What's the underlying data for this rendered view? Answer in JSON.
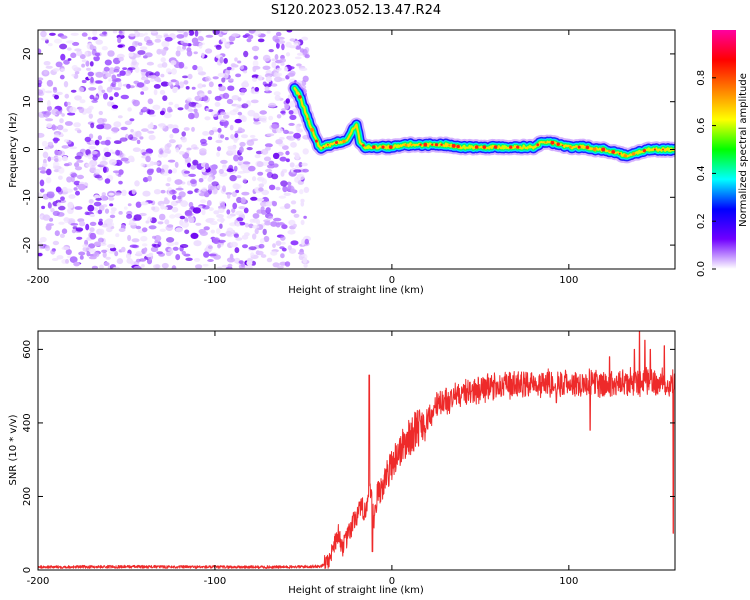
{
  "title": "S120.2023.052.13.47.R24",
  "chart_data": [
    {
      "type": "heatmap",
      "xlabel": "Height of straight line (km)",
      "ylabel": "Frequency (Hz)",
      "xlim": [
        -200,
        160
      ],
      "ylim": [
        -25,
        25
      ],
      "xticks": [
        -200,
        -100,
        0,
        100
      ],
      "yticks": [
        -20,
        -10,
        0,
        10,
        20
      ],
      "noise_region_x": [
        -200,
        -50
      ],
      "ridge": {
        "x": [
          -55,
          -52,
          -49,
          -46,
          -43,
          -40,
          -37,
          -34,
          -31,
          -28,
          -25,
          -22,
          -20,
          -18,
          -15,
          -10,
          -5,
          0,
          10,
          20,
          30,
          40,
          50,
          60,
          70,
          80,
          85,
          90,
          95,
          100,
          105,
          110,
          115,
          120,
          125,
          130,
          133,
          136,
          140,
          145,
          150,
          155,
          160
        ],
        "y": [
          13,
          11,
          8,
          5,
          2,
          0,
          1,
          1,
          1.5,
          1.5,
          2,
          4.5,
          5,
          1.5,
          0.5,
          0.5,
          0.5,
          0.5,
          1,
          1,
          1,
          0.5,
          0.5,
          0.5,
          0.5,
          0.5,
          1.5,
          1.5,
          1,
          0.5,
          0.5,
          0.5,
          0,
          0,
          -0.5,
          -1,
          -1.5,
          -1,
          -0.5,
          0,
          0,
          0,
          0
        ]
      },
      "colorbar": {
        "label": "Normalized spectral amplitude",
        "range": [
          0,
          1
        ],
        "ticks": [
          "0.0",
          "0.2",
          "0.4",
          "0.6",
          "0.8"
        ],
        "colors": [
          "#ffffff",
          "#7000ff",
          "#0000ff",
          "#00ffff",
          "#00ff00",
          "#ffff00",
          "#ff8000",
          "#ff0000",
          "#ff00a0"
        ]
      }
    },
    {
      "type": "line",
      "xlabel": "Height of straight line (km)",
      "ylabel": "SNR (10 * v/v)",
      "xlim": [
        -200,
        160
      ],
      "ylim": [
        0,
        650
      ],
      "xticks": [
        -200,
        -100,
        0,
        100
      ],
      "yticks": [
        0,
        200,
        400,
        600
      ],
      "color": "#ee2a2a",
      "trend": {
        "x": [
          -200,
          -150,
          -100,
          -60,
          -40,
          -35,
          -33,
          -30,
          -28,
          -25,
          -20,
          -15,
          -12,
          -10,
          -8,
          -5,
          0,
          5,
          10,
          15,
          20,
          25,
          30,
          40,
          50,
          60,
          70,
          80,
          90,
          100,
          110,
          120,
          130,
          140,
          150,
          160
        ],
        "y": [
          8,
          9,
          8,
          8,
          10,
          30,
          70,
          100,
          60,
          90,
          150,
          170,
          200,
          130,
          210,
          230,
          290,
          330,
          360,
          390,
          410,
          440,
          460,
          480,
          490,
          500,
          505,
          510,
          510,
          505,
          510,
          505,
          505,
          510,
          510,
          510
        ]
      },
      "spikes": [
        {
          "x": -12.8,
          "y": 530
        },
        {
          "x": -11,
          "y": 50
        },
        {
          "x": 93,
          "y": 455
        },
        {
          "x": 112,
          "y": 380
        },
        {
          "x": 123,
          "y": 580
        },
        {
          "x": 137,
          "y": 600
        },
        {
          "x": 140,
          "y": 648
        },
        {
          "x": 143,
          "y": 625
        },
        {
          "x": 146,
          "y": 600
        },
        {
          "x": 154,
          "y": 610
        },
        {
          "x": 159,
          "y": 100
        }
      ]
    }
  ]
}
